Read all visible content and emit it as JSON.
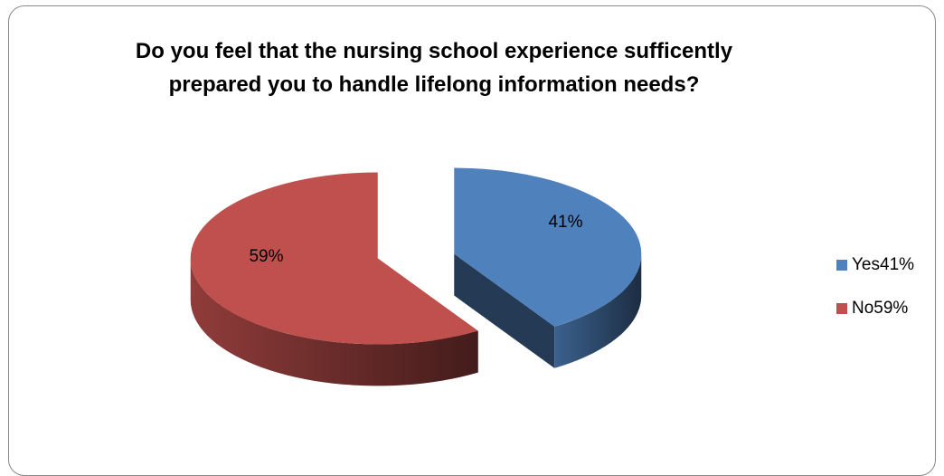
{
  "chart_data": {
    "type": "pie",
    "title": "Do you feel that the nursing school experience sufficently prepared you to handle lifelong information needs?",
    "categories": [
      "Yes41%",
      "No59%"
    ],
    "values": [
      41,
      59
    ],
    "value_labels": [
      "41%",
      "59%"
    ],
    "colors": [
      "#4f81bd",
      "#c0504d"
    ],
    "legend": "right"
  }
}
